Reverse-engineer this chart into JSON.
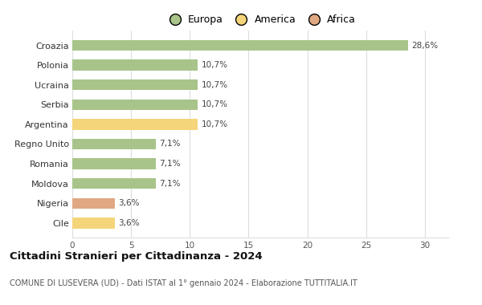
{
  "countries": [
    "Croazia",
    "Polonia",
    "Ucraina",
    "Serbia",
    "Argentina",
    "Regno Unito",
    "Romania",
    "Moldova",
    "Nigeria",
    "Cile"
  ],
  "values": [
    28.6,
    10.7,
    10.7,
    10.7,
    10.7,
    7.1,
    7.1,
    7.1,
    3.6,
    3.6
  ],
  "labels": [
    "28,6%",
    "10,7%",
    "10,7%",
    "10,7%",
    "10,7%",
    "7,1%",
    "7,1%",
    "7,1%",
    "3,6%",
    "3,6%"
  ],
  "continents": [
    "Europa",
    "Europa",
    "Europa",
    "Europa",
    "America",
    "Europa",
    "Europa",
    "Europa",
    "Africa",
    "America"
  ],
  "colors": {
    "Europa": "#a8c48a",
    "America": "#f5d57a",
    "Africa": "#e0a882"
  },
  "legend_labels": [
    "Europa",
    "America",
    "Africa"
  ],
  "legend_colors": [
    "#a8c48a",
    "#f5d57a",
    "#e0a882"
  ],
  "title": "Cittadini Stranieri per Cittadinanza - 2024",
  "subtitle": "COMUNE DI LUSEVERA (UD) - Dati ISTAT al 1° gennaio 2024 - Elaborazione TUTTITALIA.IT",
  "xlim": [
    0,
    32
  ],
  "xticks": [
    0,
    5,
    10,
    15,
    20,
    25,
    30
  ],
  "background_color": "#ffffff",
  "bar_height": 0.55,
  "grid_color": "#dddddd"
}
